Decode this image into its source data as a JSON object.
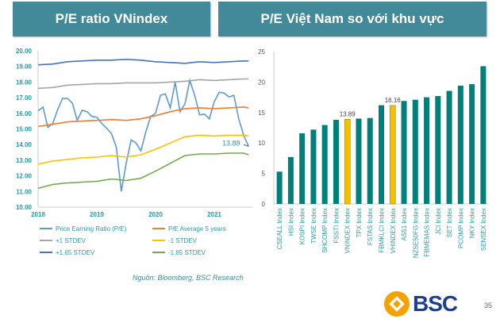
{
  "headers": {
    "left": "P/E ratio VNindex",
    "right": "P/E Việt Nam so với khu vực"
  },
  "source": "Nguồn: Bloomberg, BSC Research",
  "logo": {
    "text": "BSC",
    "color": "#1d3f8f",
    "accent": "#f5a100"
  },
  "page_number": "35",
  "chart_data": [
    {
      "type": "line",
      "ylim": [
        10,
        20
      ],
      "yticks": [
        "10.00",
        "11.00",
        "12.00",
        "13.00",
        "14.00",
        "15.00",
        "16.00",
        "17.00",
        "18.00",
        "19.00",
        "20.00"
      ],
      "xticks": [
        "2018",
        "2019",
        "2020",
        "2021"
      ],
      "grid": false,
      "legend_placement": "bottom",
      "annotation": "13.89",
      "series": [
        {
          "name": "Price Earning Ratio (P/E)",
          "color": "#5b9bd5",
          "x": [
            "2018-01",
            "2018-02",
            "2018-03",
            "2018-04",
            "2018-05",
            "2018-06",
            "2018-07",
            "2018-08",
            "2018-09",
            "2018-10",
            "2018-11",
            "2018-12",
            "2019-01",
            "2019-02",
            "2019-03",
            "2019-04",
            "2019-05",
            "2019-06",
            "2019-07",
            "2019-08",
            "2019-09",
            "2019-10",
            "2019-11",
            "2019-12",
            "2020-01",
            "2020-02",
            "2020-03",
            "2020-04",
            "2020-05",
            "2020-06",
            "2020-07",
            "2020-08",
            "2020-09",
            "2020-10",
            "2020-11",
            "2020-12",
            "2021-01",
            "2021-02",
            "2021-03",
            "2021-04",
            "2021-05",
            "2021-06",
            "2021-07",
            "2021-08"
          ],
          "y": [
            16.15,
            16.4,
            15.1,
            15.35,
            16.25,
            16.95,
            16.95,
            16.65,
            15.55,
            16.2,
            16.1,
            15.8,
            15.75,
            15.35,
            15.05,
            14.7,
            13.8,
            11.0,
            12.8,
            14.3,
            14.1,
            13.6,
            14.8,
            15.8,
            16.0,
            17.15,
            17.25,
            16.35,
            18.0,
            16.1,
            16.6,
            18.1,
            17.15,
            15.9,
            15.95,
            15.65,
            16.75,
            17.35,
            17.3,
            17.05,
            17.15,
            15.65,
            14.6,
            13.89
          ]
        },
        {
          "name": "P/E Average 5 years",
          "color": "#ed7d31",
          "x": [
            "2018-01",
            "2018-04",
            "2018-07",
            "2018-10",
            "2019-01",
            "2019-04",
            "2019-07",
            "2019-10",
            "2020-01",
            "2020-04",
            "2020-07",
            "2020-10",
            "2021-01",
            "2021-04",
            "2021-07",
            "2021-08"
          ],
          "y": [
            15.15,
            15.3,
            15.45,
            15.5,
            15.55,
            15.6,
            15.55,
            15.65,
            15.85,
            16.1,
            16.3,
            16.35,
            16.3,
            16.35,
            16.4,
            16.35
          ]
        },
        {
          "name": "+1 STDEV",
          "color": "#a5a5a5",
          "x": [
            "2018-01",
            "2018-04",
            "2018-07",
            "2018-10",
            "2019-01",
            "2019-04",
            "2019-07",
            "2019-10",
            "2020-01",
            "2020-04",
            "2020-07",
            "2020-10",
            "2021-01",
            "2021-04",
            "2021-07",
            "2021-08"
          ],
          "y": [
            17.6,
            17.65,
            17.8,
            17.85,
            17.9,
            17.9,
            17.95,
            17.95,
            17.95,
            18.0,
            18.05,
            18.15,
            18.1,
            18.15,
            18.2,
            18.2
          ]
        },
        {
          "name": "-1 STDEV",
          "color": "#ffc000",
          "x": [
            "2018-01",
            "2018-04",
            "2018-07",
            "2018-10",
            "2019-01",
            "2019-04",
            "2019-07",
            "2019-10",
            "2020-01",
            "2020-04",
            "2020-07",
            "2020-10",
            "2021-01",
            "2021-04",
            "2021-07",
            "2021-08"
          ],
          "y": [
            12.75,
            12.95,
            13.05,
            13.15,
            13.2,
            13.3,
            13.2,
            13.35,
            13.7,
            14.1,
            14.5,
            14.6,
            14.55,
            14.6,
            14.6,
            14.55
          ]
        },
        {
          "name": "+1.65 STDEV",
          "color": "#4472c4",
          "x": [
            "2018-01",
            "2018-04",
            "2018-07",
            "2018-10",
            "2019-01",
            "2019-04",
            "2019-07",
            "2019-10",
            "2020-01",
            "2020-04",
            "2020-07",
            "2020-10",
            "2021-01",
            "2021-04",
            "2021-07",
            "2021-08"
          ],
          "y": [
            19.1,
            19.15,
            19.3,
            19.35,
            19.4,
            19.4,
            19.45,
            19.4,
            19.3,
            19.25,
            19.2,
            19.3,
            19.25,
            19.3,
            19.35,
            19.35
          ]
        },
        {
          "name": "-1.65 STDEV",
          "color": "#70ad47",
          "x": [
            "2018-01",
            "2018-04",
            "2018-07",
            "2018-10",
            "2019-01",
            "2019-04",
            "2019-07",
            "2019-10",
            "2020-01",
            "2020-04",
            "2020-07",
            "2020-10",
            "2021-01",
            "2021-04",
            "2021-07",
            "2021-08"
          ],
          "y": [
            11.2,
            11.45,
            11.55,
            11.6,
            11.65,
            11.8,
            11.7,
            11.85,
            12.3,
            12.8,
            13.3,
            13.4,
            13.4,
            13.45,
            13.45,
            13.35
          ]
        }
      ]
    },
    {
      "type": "bar",
      "ylim": [
        0,
        25
      ],
      "yticks": [
        "0",
        "5",
        "10",
        "15",
        "20",
        "25"
      ],
      "grid": false,
      "bar_color": "#00807a",
      "highlight_color": "#f5c000",
      "categories": [
        "CSEALL Index",
        "HSI Index",
        "KOSPI Index",
        "TWSE Index",
        "SHCOMP Index",
        "FSSTI Index",
        "VNINDEX Index",
        "TPX Index",
        "FSTAS Index",
        "FBMKLCI Index",
        "VHINDEX Index",
        "AS51 Index",
        "NZSE50FG Index",
        "FBMEMAS Index",
        "JCI Index",
        "SET Index",
        "PCOMP Index",
        "NKY Index",
        "SENSEX Index"
      ],
      "values": [
        5.3,
        7.7,
        11.6,
        12.2,
        12.95,
        13.8,
        13.89,
        14.0,
        14.1,
        16.2,
        16.16,
        16.9,
        17.1,
        17.5,
        17.7,
        18.55,
        19.4,
        19.65,
        22.6
      ],
      "highlighted": [
        "VNINDEX Index",
        "VHINDEX Index"
      ],
      "data_labels": {
        "VNINDEX Index": "13.89",
        "VHINDEX Index": "16.16"
      }
    }
  ]
}
